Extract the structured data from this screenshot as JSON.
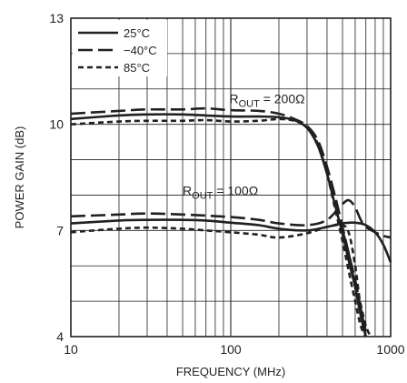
{
  "chart_data": {
    "type": "line",
    "title": "",
    "xlabel": "FREQUENCY (MHz)",
    "ylabel": "POWER GAIN (dB)",
    "xscale": "log",
    "xlim": [
      10,
      1000
    ],
    "ylim": [
      4,
      13
    ],
    "xticks": [
      10,
      100,
      1000
    ],
    "xtick_labels": [
      "10",
      "100",
      "1000"
    ],
    "yticks": [
      4,
      7,
      10,
      13
    ],
    "ytick_labels": [
      "4",
      "7",
      "10",
      "13"
    ],
    "grid": true,
    "legend": {
      "placement": "top-left",
      "entries": [
        {
          "label": "25°C",
          "style": "solid"
        },
        {
          "label": "−40°C",
          "style": "long-dash"
        },
        {
          "label": "85°C",
          "style": "short-dash"
        }
      ]
    },
    "annotations": [
      {
        "prefix": "R",
        "sub": "OUT",
        "suffix": " = 200Ω",
        "x": 98,
        "y": 10.6
      },
      {
        "prefix": "R",
        "sub": "OUT",
        "suffix": " = 100Ω",
        "x": 50,
        "y": 8.0
      }
    ],
    "series": [
      {
        "group": "200Ω",
        "style": "solid",
        "x": [
          10,
          20,
          30,
          50,
          70,
          100,
          150,
          200,
          250,
          300,
          350,
          400,
          450,
          500,
          550,
          600,
          650,
          700
        ],
        "y": [
          10.15,
          10.25,
          10.28,
          10.28,
          10.25,
          10.22,
          10.22,
          10.2,
          10.12,
          9.9,
          9.4,
          8.6,
          7.7,
          6.9,
          6.1,
          5.4,
          4.6,
          4.0
        ]
      },
      {
        "group": "200Ω",
        "style": "long-dash",
        "x": [
          10,
          20,
          30,
          50,
          70,
          100,
          150,
          200,
          250,
          300,
          350,
          400,
          450,
          500,
          550,
          600,
          650,
          700
        ],
        "y": [
          10.3,
          10.38,
          10.42,
          10.42,
          10.45,
          10.4,
          10.38,
          10.3,
          10.15,
          9.95,
          9.55,
          8.8,
          7.95,
          7.1,
          6.3,
          5.6,
          4.8,
          4.1
        ]
      },
      {
        "group": "200Ω",
        "style": "short-dash",
        "x": [
          10,
          20,
          30,
          50,
          70,
          100,
          150,
          200,
          250,
          300,
          350,
          400,
          450,
          500,
          550,
          600,
          650,
          700
        ],
        "y": [
          10.0,
          10.08,
          10.1,
          10.1,
          10.12,
          10.08,
          10.1,
          10.15,
          10.1,
          9.92,
          9.45,
          8.6,
          7.6,
          6.7,
          5.8,
          5.0,
          4.3,
          4.0
        ]
      },
      {
        "group": "100Ω",
        "style": "solid",
        "x": [
          10,
          20,
          30,
          50,
          70,
          100,
          150,
          200,
          300,
          400,
          500,
          600,
          700,
          800,
          900,
          1000
        ],
        "y": [
          7.2,
          7.28,
          7.3,
          7.3,
          7.28,
          7.22,
          7.15,
          7.05,
          7.0,
          7.1,
          7.2,
          7.22,
          7.15,
          6.95,
          6.6,
          6.1
        ]
      },
      {
        "group": "100Ω",
        "style": "long-dash",
        "x": [
          10,
          20,
          30,
          50,
          70,
          100,
          150,
          200,
          300,
          400,
          500,
          550,
          600,
          650,
          700,
          800,
          900,
          1000
        ],
        "y": [
          7.4,
          7.45,
          7.48,
          7.45,
          7.42,
          7.38,
          7.3,
          7.2,
          7.15,
          7.3,
          7.75,
          7.85,
          7.65,
          7.3,
          7.1,
          6.95,
          6.85,
          6.8
        ]
      },
      {
        "group": "100Ω",
        "style": "short-dash",
        "x": [
          10,
          20,
          30,
          50,
          70,
          100,
          150,
          200,
          300,
          400,
          500,
          550,
          600,
          650,
          700
        ],
        "y": [
          6.95,
          7.05,
          7.08,
          7.05,
          7.0,
          6.95,
          6.88,
          6.8,
          6.92,
          7.1,
          7.15,
          6.9,
          6.0,
          4.8,
          4.0
        ]
      },
      {
        "group": "100Ω",
        "style": "solid",
        "x": [
          500,
          550,
          600,
          650,
          700
        ],
        "y": [
          7.0,
          6.3,
          5.4,
          4.6,
          4.0
        ]
      },
      {
        "group": "100Ω",
        "style": "short-dash",
        "x": [
          550,
          600,
          650,
          700,
          750
        ],
        "y": [
          6.2,
          5.6,
          4.9,
          4.3,
          4.0
        ]
      }
    ]
  }
}
